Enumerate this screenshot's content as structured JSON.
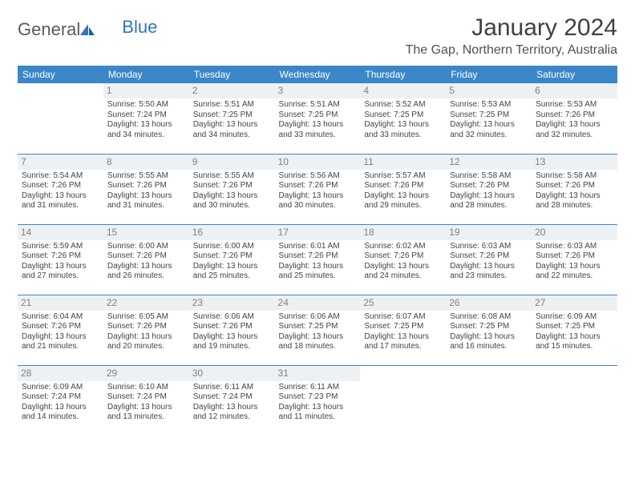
{
  "brand": {
    "part1": "General",
    "part2": "Blue"
  },
  "title": "January 2024",
  "location": "The Gap, Northern Territory, Australia",
  "colors": {
    "header_bg": "#3b87c8",
    "header_text": "#ffffff",
    "daynum_bg": "#eef1f3",
    "daynum_text": "#808080",
    "border": "#3b87c8",
    "body_text": "#444444"
  },
  "weekdays": [
    "Sunday",
    "Monday",
    "Tuesday",
    "Wednesday",
    "Thursday",
    "Friday",
    "Saturday"
  ],
  "weeks": [
    [
      {
        "n": "",
        "lines": []
      },
      {
        "n": "1",
        "lines": [
          "Sunrise: 5:50 AM",
          "Sunset: 7:24 PM",
          "Daylight: 13 hours and 34 minutes."
        ]
      },
      {
        "n": "2",
        "lines": [
          "Sunrise: 5:51 AM",
          "Sunset: 7:25 PM",
          "Daylight: 13 hours and 34 minutes."
        ]
      },
      {
        "n": "3",
        "lines": [
          "Sunrise: 5:51 AM",
          "Sunset: 7:25 PM",
          "Daylight: 13 hours and 33 minutes."
        ]
      },
      {
        "n": "4",
        "lines": [
          "Sunrise: 5:52 AM",
          "Sunset: 7:25 PM",
          "Daylight: 13 hours and 33 minutes."
        ]
      },
      {
        "n": "5",
        "lines": [
          "Sunrise: 5:53 AM",
          "Sunset: 7:25 PM",
          "Daylight: 13 hours and 32 minutes."
        ]
      },
      {
        "n": "6",
        "lines": [
          "Sunrise: 5:53 AM",
          "Sunset: 7:26 PM",
          "Daylight: 13 hours and 32 minutes."
        ]
      }
    ],
    [
      {
        "n": "7",
        "lines": [
          "Sunrise: 5:54 AM",
          "Sunset: 7:26 PM",
          "Daylight: 13 hours and 31 minutes."
        ]
      },
      {
        "n": "8",
        "lines": [
          "Sunrise: 5:55 AM",
          "Sunset: 7:26 PM",
          "Daylight: 13 hours and 31 minutes."
        ]
      },
      {
        "n": "9",
        "lines": [
          "Sunrise: 5:55 AM",
          "Sunset: 7:26 PM",
          "Daylight: 13 hours and 30 minutes."
        ]
      },
      {
        "n": "10",
        "lines": [
          "Sunrise: 5:56 AM",
          "Sunset: 7:26 PM",
          "Daylight: 13 hours and 30 minutes."
        ]
      },
      {
        "n": "11",
        "lines": [
          "Sunrise: 5:57 AM",
          "Sunset: 7:26 PM",
          "Daylight: 13 hours and 29 minutes."
        ]
      },
      {
        "n": "12",
        "lines": [
          "Sunrise: 5:58 AM",
          "Sunset: 7:26 PM",
          "Daylight: 13 hours and 28 minutes."
        ]
      },
      {
        "n": "13",
        "lines": [
          "Sunrise: 5:58 AM",
          "Sunset: 7:26 PM",
          "Daylight: 13 hours and 28 minutes."
        ]
      }
    ],
    [
      {
        "n": "14",
        "lines": [
          "Sunrise: 5:59 AM",
          "Sunset: 7:26 PM",
          "Daylight: 13 hours and 27 minutes."
        ]
      },
      {
        "n": "15",
        "lines": [
          "Sunrise: 6:00 AM",
          "Sunset: 7:26 PM",
          "Daylight: 13 hours and 26 minutes."
        ]
      },
      {
        "n": "16",
        "lines": [
          "Sunrise: 6:00 AM",
          "Sunset: 7:26 PM",
          "Daylight: 13 hours and 25 minutes."
        ]
      },
      {
        "n": "17",
        "lines": [
          "Sunrise: 6:01 AM",
          "Sunset: 7:26 PM",
          "Daylight: 13 hours and 25 minutes."
        ]
      },
      {
        "n": "18",
        "lines": [
          "Sunrise: 6:02 AM",
          "Sunset: 7:26 PM",
          "Daylight: 13 hours and 24 minutes."
        ]
      },
      {
        "n": "19",
        "lines": [
          "Sunrise: 6:03 AM",
          "Sunset: 7:26 PM",
          "Daylight: 13 hours and 23 minutes."
        ]
      },
      {
        "n": "20",
        "lines": [
          "Sunrise: 6:03 AM",
          "Sunset: 7:26 PM",
          "Daylight: 13 hours and 22 minutes."
        ]
      }
    ],
    [
      {
        "n": "21",
        "lines": [
          "Sunrise: 6:04 AM",
          "Sunset: 7:26 PM",
          "Daylight: 13 hours and 21 minutes."
        ]
      },
      {
        "n": "22",
        "lines": [
          "Sunrise: 6:05 AM",
          "Sunset: 7:26 PM",
          "Daylight: 13 hours and 20 minutes."
        ]
      },
      {
        "n": "23",
        "lines": [
          "Sunrise: 6:06 AM",
          "Sunset: 7:26 PM",
          "Daylight: 13 hours and 19 minutes."
        ]
      },
      {
        "n": "24",
        "lines": [
          "Sunrise: 6:06 AM",
          "Sunset: 7:25 PM",
          "Daylight: 13 hours and 18 minutes."
        ]
      },
      {
        "n": "25",
        "lines": [
          "Sunrise: 6:07 AM",
          "Sunset: 7:25 PM",
          "Daylight: 13 hours and 17 minutes."
        ]
      },
      {
        "n": "26",
        "lines": [
          "Sunrise: 6:08 AM",
          "Sunset: 7:25 PM",
          "Daylight: 13 hours and 16 minutes."
        ]
      },
      {
        "n": "27",
        "lines": [
          "Sunrise: 6:09 AM",
          "Sunset: 7:25 PM",
          "Daylight: 13 hours and 15 minutes."
        ]
      }
    ],
    [
      {
        "n": "28",
        "lines": [
          "Sunrise: 6:09 AM",
          "Sunset: 7:24 PM",
          "Daylight: 13 hours and 14 minutes."
        ]
      },
      {
        "n": "29",
        "lines": [
          "Sunrise: 6:10 AM",
          "Sunset: 7:24 PM",
          "Daylight: 13 hours and 13 minutes."
        ]
      },
      {
        "n": "30",
        "lines": [
          "Sunrise: 6:11 AM",
          "Sunset: 7:24 PM",
          "Daylight: 13 hours and 12 minutes."
        ]
      },
      {
        "n": "31",
        "lines": [
          "Sunrise: 6:11 AM",
          "Sunset: 7:23 PM",
          "Daylight: 13 hours and 11 minutes."
        ]
      },
      {
        "n": "",
        "lines": []
      },
      {
        "n": "",
        "lines": []
      },
      {
        "n": "",
        "lines": []
      }
    ]
  ]
}
